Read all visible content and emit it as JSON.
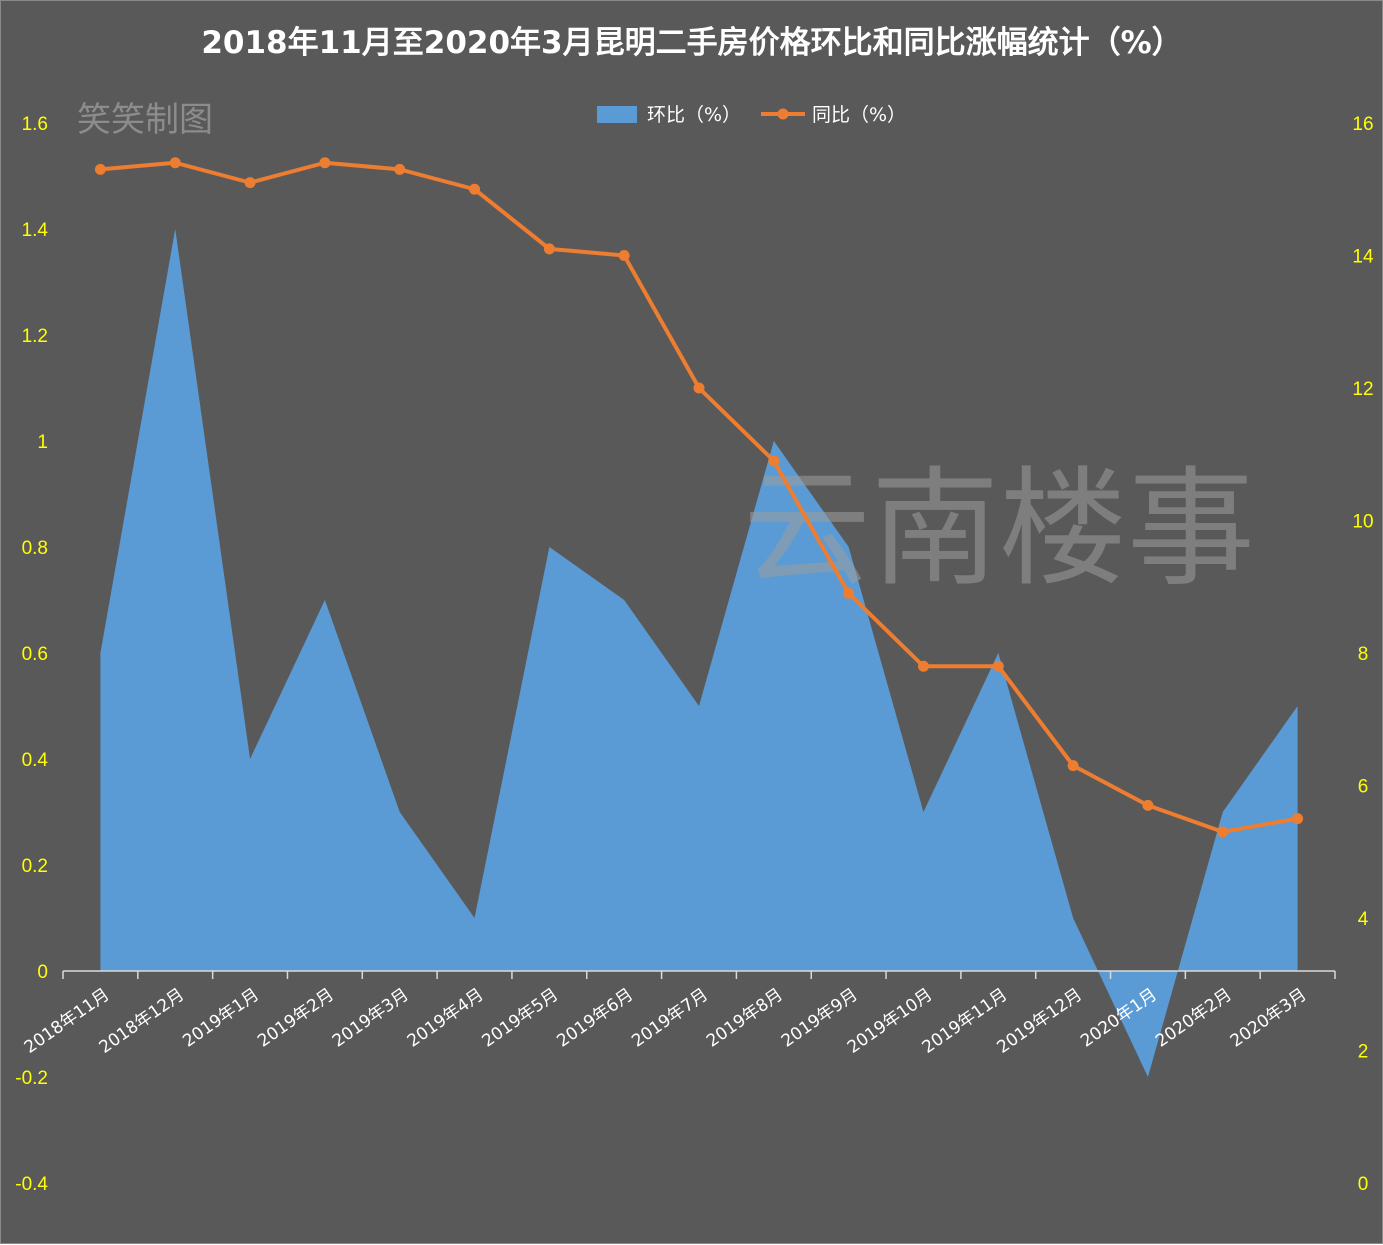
{
  "chart_data": {
    "type": "area+line",
    "title": "2018年11月至2020年3月昆明二手房价格环比和同比涨幅统计（%）",
    "credit": "笑笑制图",
    "watermark": "云南楼事",
    "categories": [
      "2018年11月",
      "2018年12月",
      "2019年1月",
      "2019年2月",
      "2019年3月",
      "2019年4月",
      "2019年5月",
      "2019年6月",
      "2019年7月",
      "2019年8月",
      "2019年9月",
      "2019年10月",
      "2019年11月",
      "2019年12月",
      "2020年1月",
      "2020年2月",
      "2020年3月"
    ],
    "series": [
      {
        "name": "环比（%）",
        "type": "area",
        "axis": "left",
        "color": "#5b9bd5",
        "values": [
          0.6,
          1.4,
          0.4,
          0.7,
          0.3,
          0.1,
          0.8,
          0.7,
          0.5,
          1.0,
          0.8,
          0.3,
          0.6,
          0.1,
          -0.2,
          0.3,
          0.5
        ]
      },
      {
        "name": "同比（%）",
        "type": "line",
        "axis": "right",
        "color": "#ed7d31",
        "values": [
          15.3,
          15.4,
          15.1,
          15.4,
          15.3,
          15.0,
          14.1,
          14.0,
          12.0,
          10.9,
          8.9,
          7.8,
          7.8,
          6.3,
          5.7,
          5.3,
          5.5
        ]
      }
    ],
    "y_left": {
      "ylim": [
        -0.4,
        1.6
      ],
      "ticks": [
        "-0.4",
        "-0.2",
        "0",
        "0.2",
        "0.4",
        "0.6",
        "0.8",
        "1",
        "1.2",
        "1.4",
        "1.6"
      ],
      "tick_values": [
        -0.4,
        -0.2,
        0,
        0.2,
        0.4,
        0.6,
        0.8,
        1,
        1.2,
        1.4,
        1.6
      ]
    },
    "y_right": {
      "ylim": [
        0,
        16
      ],
      "ticks": [
        "0",
        "2",
        "4",
        "6",
        "8",
        "10",
        "12",
        "14",
        "16"
      ],
      "tick_values": [
        0,
        2,
        4,
        6,
        8,
        10,
        12,
        14,
        16
      ]
    },
    "legend_position": "top-center",
    "grid": false,
    "background_color": "#595959",
    "tick_color": "#ffff00"
  }
}
